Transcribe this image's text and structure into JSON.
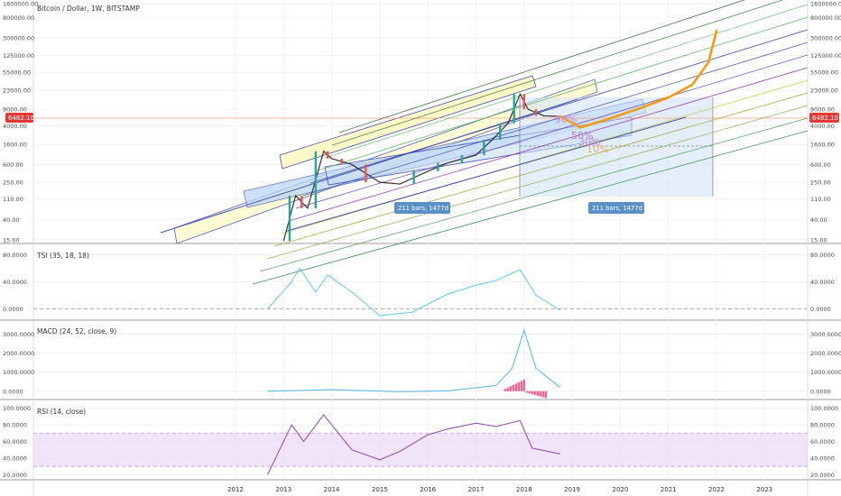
{
  "chart_data": [
    {
      "type": "line",
      "title": "Bitcoin / Dollar, 1W, BITSTAMP",
      "y_scale": "log",
      "y_ticks": [
        "1600000.00",
        "800000.00",
        "300000.00",
        "125000.00",
        "55000.00",
        "23000.00",
        "9000.00",
        "4000.00",
        "1600.00",
        "600.00",
        "250.00",
        "110.00",
        "40.00",
        "15.00"
      ],
      "price_label": "6482.10",
      "price_series": {
        "x": [
          "2013-01",
          "2013-04",
          "2013-07",
          "2013-11",
          "2014-01",
          "2014-06",
          "2015-01",
          "2015-06",
          "2016-01",
          "2016-06",
          "2017-01",
          "2017-05",
          "2017-09",
          "2017-12",
          "2018-02",
          "2018-06",
          "2018-10"
        ],
        "values": [
          14,
          130,
          70,
          1150,
          800,
          600,
          250,
          230,
          430,
          650,
          950,
          2000,
          4500,
          19000,
          9000,
          6500,
          6400
        ]
      },
      "projection": {
        "x": [
          "2018-10",
          "2019-03",
          "2019-09",
          "2020-06",
          "2021-01",
          "2021-07",
          "2021-11",
          "2022-01"
        ],
        "values": [
          6400,
          3700,
          5200,
          9500,
          16000,
          30000,
          90000,
          420000
        ]
      },
      "annotations": [
        "211 bars, 1477d",
        "211 bars, 1477d",
        "90%",
        "50%",
        "30%",
        "10%"
      ]
    },
    {
      "type": "line",
      "title": "TSI (35, 18, 18)",
      "y_ticks": [
        "80.0000",
        "40.0000",
        "0.0000"
      ],
      "series": [
        {
          "x": [
            "2012-09",
            "2013-03",
            "2013-05",
            "2013-09",
            "2013-12",
            "2014-06",
            "2015-01",
            "2015-09",
            "2016-06",
            "2017-01",
            "2017-06",
            "2017-12",
            "2018-04",
            "2018-10"
          ],
          "values": [
            0,
            40,
            60,
            25,
            50,
            25,
            -10,
            -5,
            22,
            35,
            42,
            58,
            20,
            -2
          ]
        }
      ]
    },
    {
      "type": "line",
      "title": "MACD (24, 52, close, 9)",
      "y_ticks": [
        "3000.0000",
        "2000.0000",
        "1000.0000",
        "0.0000"
      ],
      "series": [
        {
          "x": [
            "2012-09",
            "2014-01",
            "2015-06",
            "2016-06",
            "2017-06",
            "2017-10",
            "2018-01",
            "2018-04",
            "2018-10"
          ],
          "values": [
            0,
            80,
            -30,
            20,
            300,
            1200,
            3200,
            1200,
            200
          ]
        }
      ]
    },
    {
      "type": "line",
      "title": "RSI (14, close)",
      "y_ticks": [
        "100.0000",
        "80.0000",
        "60.0000",
        "40.0000",
        "20.0000"
      ],
      "series": [
        {
          "x": [
            "2012-09",
            "2013-03",
            "2013-06",
            "2013-11",
            "2014-06",
            "2015-01",
            "2015-06",
            "2016-01",
            "2016-06",
            "2017-01",
            "2017-06",
            "2017-12",
            "2018-03",
            "2018-10"
          ],
          "values": [
            20,
            80,
            60,
            92,
            50,
            38,
            48,
            68,
            75,
            82,
            78,
            85,
            52,
            45
          ]
        }
      ]
    }
  ],
  "x_axis": [
    "2012",
    "2013",
    "2014",
    "2015",
    "2016",
    "2017",
    "2018",
    "2019",
    "2020",
    "2021",
    "2022",
    "2023"
  ],
  "colors": {
    "bull": "#26a69a",
    "bear": "#ef5350",
    "projection": "#f39c12",
    "price_tag": "#e53935",
    "tsi_fast": "#5ec8ef",
    "tsi_slow": "#e87ba8",
    "macd": "#4fb4e8",
    "signal": "#f5a34a",
    "hist": "#f06292",
    "rsi": "#8e44ad"
  }
}
